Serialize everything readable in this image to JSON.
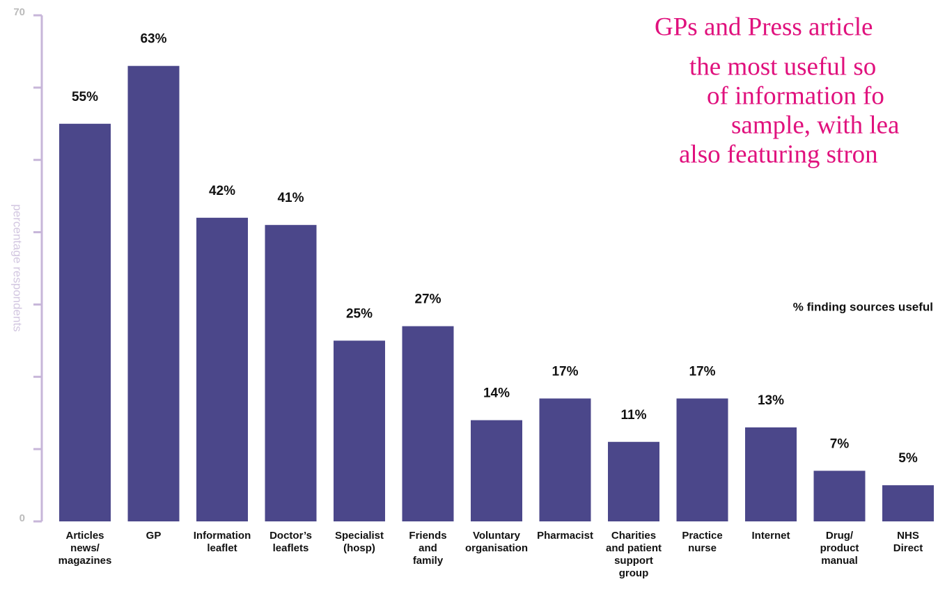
{
  "chart_data": {
    "type": "bar",
    "title_lines": [
      "GPs and Press article",
      "the most useful so",
      "of information fo",
      "sample, with lea",
      "also featuring stron"
    ],
    "annotation": "% finding sources useful",
    "y_label": "percentage respondents",
    "categories": [
      "Articles\nnews/\nmagazines",
      "GP",
      "Information\nleaflet",
      "Doctor’s\nleaflets",
      "Specialist\n(hosp)",
      "Friends\nand\nfamily",
      "Voluntary\norganisation",
      "Pharmacist",
      "Charities\nand patient\nsupport\ngroup",
      "Practice\nnurse",
      "Internet",
      "Drug/\nproduct\nmanual",
      "NHS\nDirect"
    ],
    "values": [
      55,
      63,
      42,
      41,
      25,
      27,
      14,
      17,
      11,
      17,
      13,
      7,
      5
    ],
    "value_labels": [
      "55%",
      "63%",
      "42%",
      "41%",
      "25%",
      "27%",
      "14%",
      "17%",
      "11%",
      "17%",
      "13%",
      "7%",
      "5%"
    ],
    "color": "#4b478a",
    "ylim": [
      0,
      70
    ],
    "yticks": [
      0,
      70
    ],
    "minor_yticks": [
      10,
      20,
      30,
      40,
      50,
      60
    ]
  }
}
